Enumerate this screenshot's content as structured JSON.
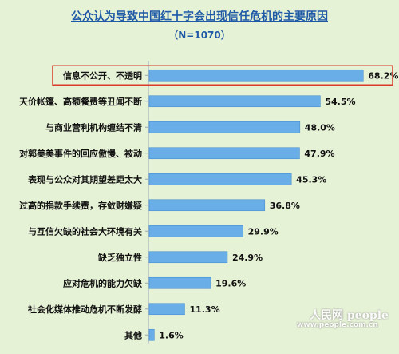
{
  "chart_data": {
    "type": "bar",
    "orientation": "horizontal",
    "title": "公众认为导致中国红十字会出现信任危机的主要原因",
    "subtitle": "（N=1070）",
    "categories": [
      "信息不公开、不透明",
      "天价帐篷、高额餐费等丑闻不断",
      "与商业营利机构缠结不清",
      "对郭美美事件的回应傲慢、被动",
      "表现与公众对其期望差距太大",
      "过高的捐款手续费，存敛财嫌疑",
      "与互信欠缺的社会大环境有关",
      "缺乏独立性",
      "应对危机的能力欠缺",
      "社会化媒体推动危机不断发酵",
      "其他"
    ],
    "values": [
      68.2,
      54.5,
      48.0,
      47.9,
      45.3,
      36.8,
      29.9,
      24.9,
      19.6,
      11.3,
      1.6
    ],
    "value_labels": [
      "68.2%",
      "54.5%",
      "48.0%",
      "47.9%",
      "45.3%",
      "36.8%",
      "29.9%",
      "24.9%",
      "19.6%",
      "11.3%",
      "1.6%"
    ],
    "highlighted_category": "信息不公开、不透明",
    "xlim": [
      0,
      75
    ],
    "grid": false,
    "legend": "none",
    "colors": {
      "bar": "#6aaee8",
      "bar_edge": "#4a8fd0",
      "background": "#e6f2d6",
      "title": "#1f5aa6",
      "highlight_box": "#d83a2a",
      "axis": "#9aa7b8",
      "label_text": "#111111"
    }
  },
  "watermark": {
    "text": "人民网 people",
    "url": "www.people.com.cn"
  }
}
